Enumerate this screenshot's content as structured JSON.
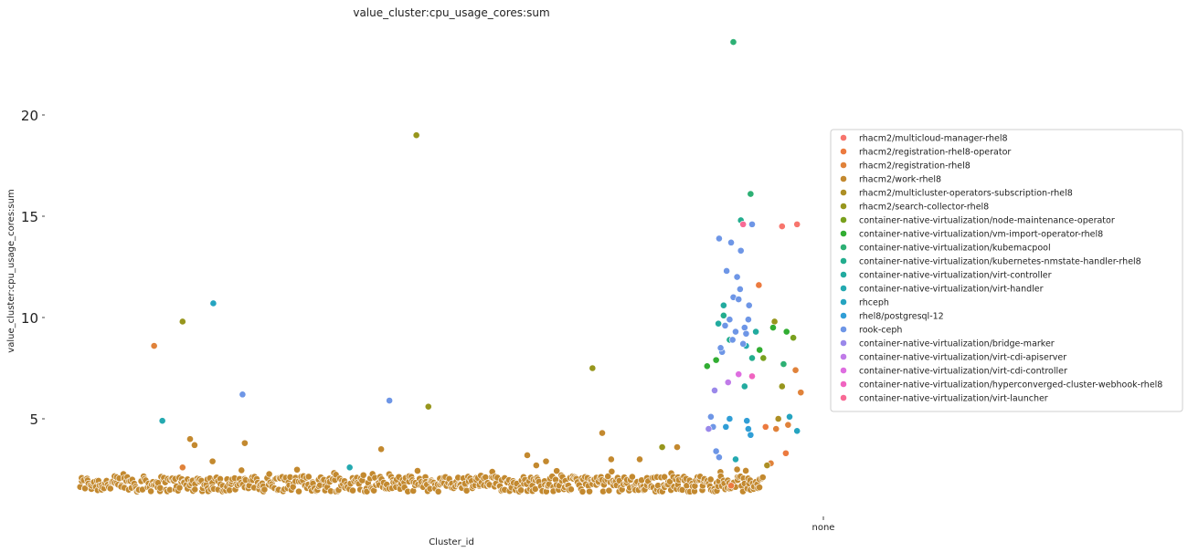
{
  "chart_data": {
    "type": "scatter",
    "title": "value_cluster:cpu_usage_cores:sum",
    "xlabel": "Cluster_id",
    "ylabel": "value_cluster:cpu_usage_cores:sum",
    "x_tick_labels": [
      "none"
    ],
    "y_ticks": [
      5,
      10,
      15,
      20
    ],
    "ylim": [
      0.8,
      24.5
    ],
    "xlim": [
      0,
      1000
    ],
    "grid": false,
    "legend_placement": "right",
    "background_count": 620,
    "background_y_range": [
      1.4,
      2.5
    ],
    "background_color": "#c3892f",
    "series": [
      {
        "name": "rhacm2/multicloud-manager-rhel8",
        "color": "#f7756d",
        "points": [
          [
            960,
            14.6
          ],
          [
            940,
            14.5
          ]
        ]
      },
      {
        "name": "rhacm2/registration-rhel8-operator",
        "color": "#ec7a3f",
        "points": [
          [
            872,
            1.7
          ],
          [
            918,
            4.6
          ],
          [
            945,
            3.3
          ],
          [
            909,
            11.6
          ]
        ]
      },
      {
        "name": "rhacm2/registration-rhel8",
        "color": "#e0823a",
        "points": [
          [
            102,
            8.6
          ],
          [
            140,
            2.6
          ],
          [
            925,
            2.8
          ],
          [
            932,
            4.5
          ],
          [
            958,
            7.4
          ],
          [
            965,
            6.3
          ],
          [
            948,
            4.7
          ]
        ]
      },
      {
        "name": "rhacm2/work-rhel8",
        "color": "#c3892f",
        "points": [
          [
            150,
            4.0
          ],
          [
            156,
            3.7
          ],
          [
            180,
            2.9
          ],
          [
            223,
            3.8
          ],
          [
            405,
            3.5
          ],
          [
            600,
            3.2
          ],
          [
            625,
            2.9
          ],
          [
            700,
            4.3
          ],
          [
            712,
            3.0
          ],
          [
            750,
            3.0
          ],
          [
            800,
            3.6
          ],
          [
            612,
            2.7
          ],
          [
            880,
            2.5
          ]
        ]
      },
      {
        "name": "rhacm2/multicluster-operators-subscription-rhel8",
        "color": "#ad8f25",
        "points": [
          [
            920,
            2.7
          ],
          [
            935,
            5.0
          ]
        ]
      },
      {
        "name": "rhacm2/search-collector-rhel8",
        "color": "#97961d",
        "points": [
          [
            140,
            9.8
          ],
          [
            452,
            19.0
          ],
          [
            468,
            5.6
          ],
          [
            687,
            7.5
          ],
          [
            780,
            3.6
          ],
          [
            930,
            9.8
          ],
          [
            940,
            6.6
          ]
        ]
      },
      {
        "name": "container-native-virtualization/node-maintenance-operator",
        "color": "#79a01d",
        "points": [
          [
            915,
            8.0
          ],
          [
            955,
            9.0
          ]
        ]
      },
      {
        "name": "container-native-virtualization/vm-import-operator-rhel8",
        "color": "#31ad32",
        "points": [
          [
            840,
            7.6
          ],
          [
            852,
            7.9
          ],
          [
            910,
            8.4
          ],
          [
            928,
            9.5
          ],
          [
            946,
            9.3
          ]
        ]
      },
      {
        "name": "container-native-virtualization/kubemacpool",
        "color": "#2db074",
        "points": [
          [
            875,
            23.6
          ],
          [
            898,
            16.1
          ],
          [
            942,
            7.7
          ]
        ]
      },
      {
        "name": "container-native-virtualization/kubernetes-nmstate-handler-rhel8",
        "color": "#23ad8e",
        "points": [
          [
            862,
            10.1
          ],
          [
            870,
            8.9
          ],
          [
            900,
            8.0
          ],
          [
            885,
            14.8
          ]
        ]
      },
      {
        "name": "container-native-virtualization/virt-controller",
        "color": "#22ab9f",
        "points": [
          [
            855,
            9.7
          ],
          [
            862,
            10.6
          ],
          [
            905,
            9.3
          ],
          [
            890,
            6.6
          ]
        ]
      },
      {
        "name": "container-native-virtualization/virt-handler",
        "color": "#24a9b0",
        "points": [
          [
            113,
            4.9
          ],
          [
            363,
            2.6
          ],
          [
            892,
            8.6
          ],
          [
            878,
            3.0
          ]
        ]
      },
      {
        "name": "rhceph",
        "color": "#25a4c0",
        "points": [
          [
            181,
            10.7
          ],
          [
            950,
            5.1
          ],
          [
            960,
            4.4
          ]
        ]
      },
      {
        "name": "rhel8/postgresql-12",
        "color": "#309ed6",
        "points": [
          [
            893,
            4.9
          ],
          [
            895,
            4.5
          ],
          [
            898,
            4.2
          ],
          [
            870,
            5.0
          ],
          [
            865,
            4.6
          ]
        ]
      },
      {
        "name": "rook-ceph",
        "color": "#6e96e6",
        "points": [
          [
            220,
            6.2
          ],
          [
            416,
            5.9
          ],
          [
            856,
            13.9
          ],
          [
            864,
            9.6
          ],
          [
            870,
            9.9
          ],
          [
            875,
            11.0
          ],
          [
            880,
            12.0
          ],
          [
            885,
            13.3
          ],
          [
            890,
            9.5
          ],
          [
            895,
            9.9
          ],
          [
            900,
            14.6
          ],
          [
            860,
            8.3
          ],
          [
            858,
            8.5
          ],
          [
            845,
            5.1
          ],
          [
            848,
            4.6
          ],
          [
            852,
            3.4
          ],
          [
            856,
            3.1
          ],
          [
            872,
            13.7
          ],
          [
            878,
            9.3
          ],
          [
            882,
            10.9
          ],
          [
            888,
            8.7
          ],
          [
            892,
            9.2
          ],
          [
            896,
            10.6
          ],
          [
            866,
            12.3
          ],
          [
            874,
            8.9
          ],
          [
            884,
            11.4
          ]
        ]
      },
      {
        "name": "container-native-virtualization/bridge-marker",
        "color": "#9a88ea",
        "points": [
          [
            842,
            4.5
          ],
          [
            850,
            6.4
          ]
        ]
      },
      {
        "name": "container-native-virtualization/virt-cdi-apiserver",
        "color": "#c07be8",
        "points": [
          [
            868,
            6.8
          ]
        ]
      },
      {
        "name": "container-native-virtualization/virt-cdi-controller",
        "color": "#de6ee0",
        "points": [
          [
            882,
            7.2
          ]
        ]
      },
      {
        "name": "container-native-virtualization/hyperconverged-cluster-webhook-rhel8",
        "color": "#f064c0",
        "points": [
          [
            900,
            7.1
          ]
        ]
      },
      {
        "name": "container-native-virtualization/virt-launcher",
        "color": "#f86a95",
        "points": [
          [
            888,
            14.6
          ]
        ]
      }
    ]
  }
}
